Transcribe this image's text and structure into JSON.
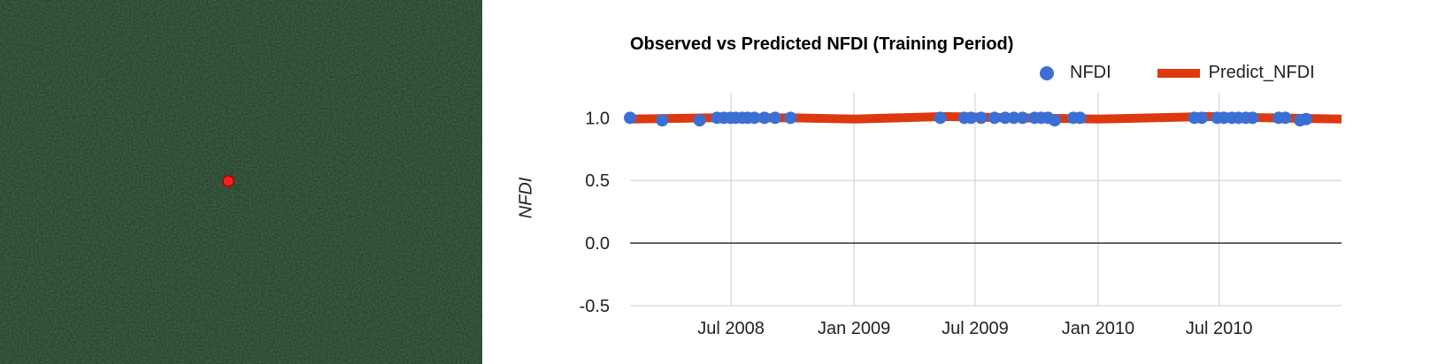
{
  "map": {
    "background_color": "#1f3b25",
    "marker_color": "#ff2020"
  },
  "chart_data": {
    "type": "line",
    "title": "Observed vs Predicted NFDI (Training Period)",
    "xlabel": "",
    "ylabel": "NFDI",
    "ylim": [
      -0.5,
      1.0
    ],
    "y_ticks": [
      "1.0",
      "0.5",
      "0.0",
      "-0.5"
    ],
    "x_ticks": [
      "Jul 2008",
      "Jan 2009",
      "Jul 2009",
      "Jan 2010",
      "Jul 2010"
    ],
    "xlim": [
      "2008-02-01",
      "2010-12-31"
    ],
    "legend_position": "top-right",
    "grid": true,
    "series": [
      {
        "name": "NFDI",
        "mark": "point",
        "color": "#3b6fd4",
        "points": [
          [
            "2008-02-01",
            1.0
          ],
          [
            "2008-03-20",
            0.98
          ],
          [
            "2008-05-15",
            0.98
          ],
          [
            "2008-06-10",
            1.0
          ],
          [
            "2008-06-20",
            1.0
          ],
          [
            "2008-06-30",
            1.0
          ],
          [
            "2008-07-08",
            1.0
          ],
          [
            "2008-07-18",
            1.0
          ],
          [
            "2008-07-26",
            1.0
          ],
          [
            "2008-08-05",
            1.0
          ],
          [
            "2008-08-20",
            1.0
          ],
          [
            "2008-09-05",
            1.0
          ],
          [
            "2008-09-28",
            1.0
          ],
          [
            "2009-05-10",
            1.0
          ],
          [
            "2009-06-15",
            1.0
          ],
          [
            "2009-06-25",
            1.0
          ],
          [
            "2009-07-10",
            1.0
          ],
          [
            "2009-07-30",
            1.0
          ],
          [
            "2009-08-15",
            1.0
          ],
          [
            "2009-08-28",
            1.0
          ],
          [
            "2009-09-10",
            1.0
          ],
          [
            "2009-09-28",
            1.0
          ],
          [
            "2009-10-08",
            1.0
          ],
          [
            "2009-10-18",
            1.0
          ],
          [
            "2009-10-28",
            0.98
          ],
          [
            "2009-11-25",
            1.0
          ],
          [
            "2009-12-05",
            1.0
          ],
          [
            "2010-05-25",
            1.0
          ],
          [
            "2010-06-05",
            1.0
          ],
          [
            "2010-06-28",
            1.0
          ],
          [
            "2010-07-08",
            1.0
          ],
          [
            "2010-07-20",
            1.0
          ],
          [
            "2010-07-30",
            1.0
          ],
          [
            "2010-08-10",
            1.0
          ],
          [
            "2010-08-20",
            1.0
          ],
          [
            "2010-09-28",
            1.0
          ],
          [
            "2010-10-08",
            1.0
          ],
          [
            "2010-10-30",
            0.98
          ],
          [
            "2010-11-08",
            0.99
          ]
        ]
      },
      {
        "name": "Predict_NFDI",
        "mark": "line",
        "color": "#dc3912",
        "points": [
          [
            "2008-02-01",
            0.99
          ],
          [
            "2008-06-01",
            1.0
          ],
          [
            "2008-10-01",
            1.0
          ],
          [
            "2009-01-01",
            0.99
          ],
          [
            "2009-05-15",
            1.01
          ],
          [
            "2009-09-01",
            1.0
          ],
          [
            "2010-01-01",
            0.99
          ],
          [
            "2010-06-15",
            1.01
          ],
          [
            "2010-09-15",
            1.0
          ],
          [
            "2010-12-31",
            0.99
          ]
        ]
      }
    ]
  }
}
